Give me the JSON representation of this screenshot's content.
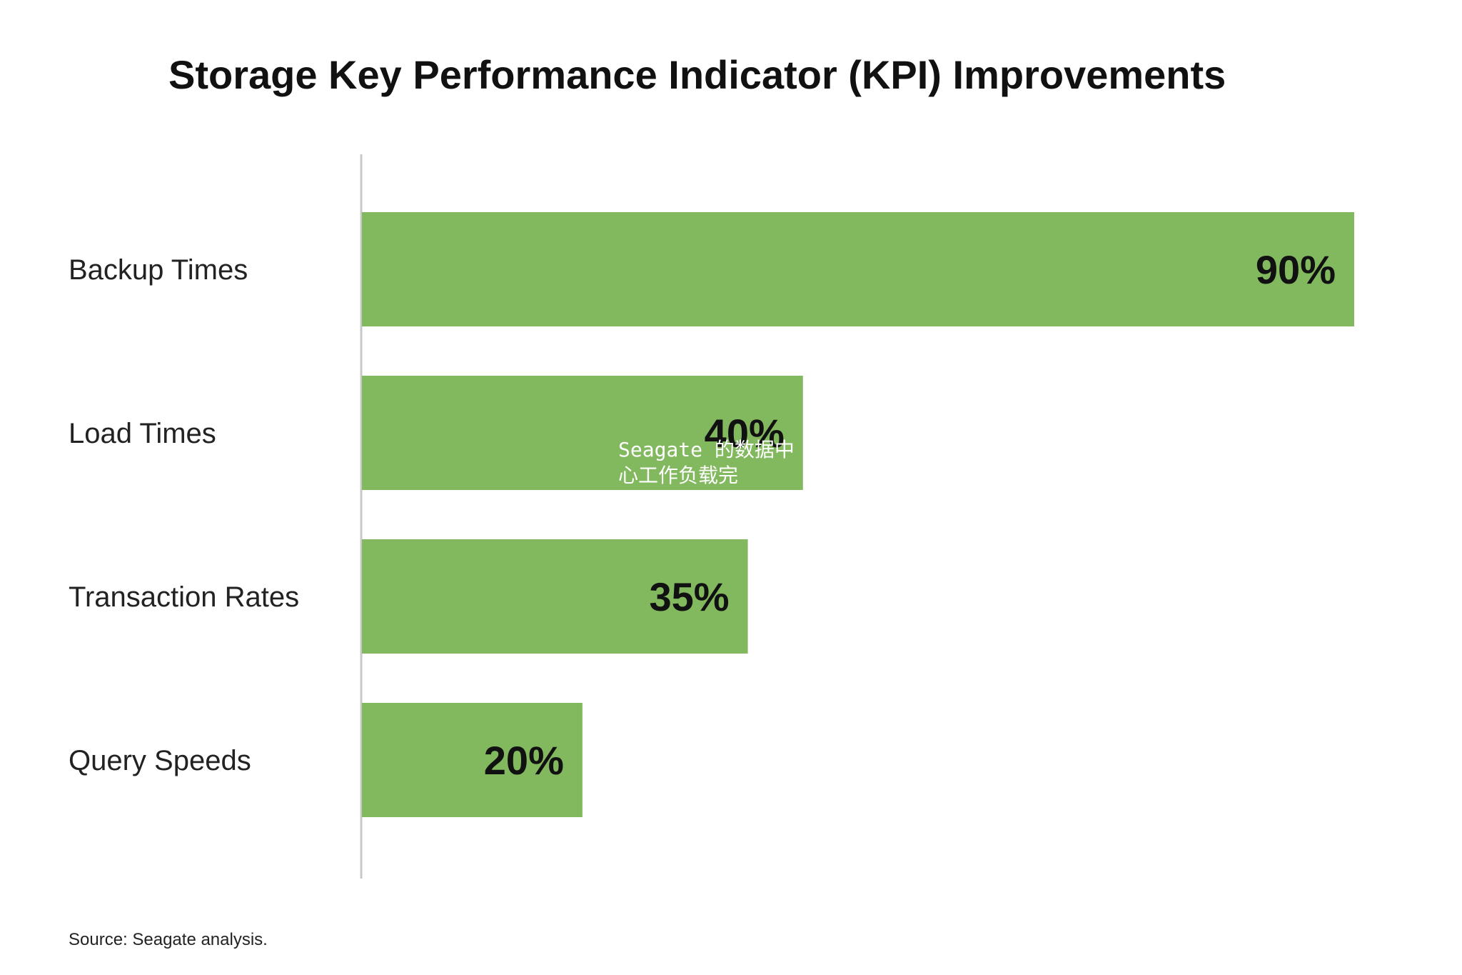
{
  "chart_data": {
    "type": "bar",
    "orientation": "horizontal",
    "title": "Storage Key Performance Indicator (KPI) Improvements",
    "categories": [
      "Backup Times",
      "Load Times",
      "Transaction Rates",
      "Query Speeds"
    ],
    "values": [
      90,
      40,
      35,
      20
    ],
    "value_labels": [
      "90%",
      "40%",
      "35%",
      "20%"
    ],
    "unit": "%",
    "xlim": [
      0,
      90
    ],
    "grid": false,
    "legend": "none",
    "bar_color": "#82b85e",
    "axis_color": "#c8c8c8",
    "source": "Source: Seagate analysis."
  },
  "overlay": {
    "text": "Seagate 的数据中心工作负载完"
  }
}
